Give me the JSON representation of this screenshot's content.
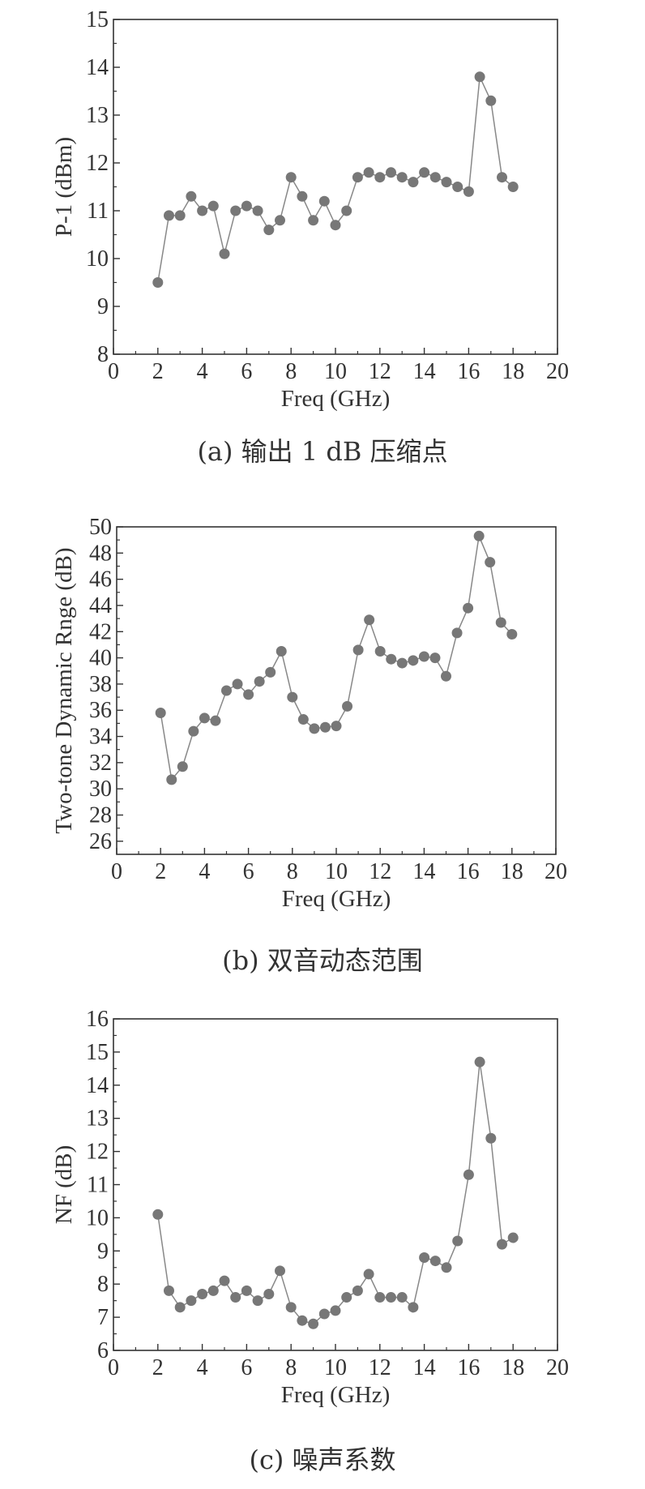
{
  "chart_data": [
    {
      "type": "line",
      "caption": "(a) 输出 1 dB 压缩点",
      "xlabel": "Freq (GHz)",
      "ylabel": "P-1 (dBm)",
      "xlim": [
        0,
        20
      ],
      "ylim": [
        8,
        15
      ],
      "xticks": [
        0,
        2,
        4,
        6,
        8,
        10,
        12,
        14,
        16,
        18,
        20
      ],
      "yticks": [
        8,
        9,
        10,
        11,
        12,
        13,
        14,
        15
      ],
      "markers": true,
      "grid": false,
      "series": [
        {
          "x": [
            2,
            2.5,
            3,
            3.5,
            4,
            4.5,
            5,
            5.5,
            6,
            6.5,
            7,
            7.5,
            8,
            8.5,
            9,
            9.5,
            10,
            10.5,
            11,
            11.5,
            12,
            12.5,
            13,
            13.5,
            14,
            14.5,
            15,
            15.5,
            16,
            16.5,
            17,
            17.5,
            18
          ],
          "y": [
            9.5,
            10.9,
            10.9,
            11.3,
            11.0,
            11.1,
            10.1,
            11.0,
            11.1,
            11.0,
            10.6,
            10.8,
            11.7,
            11.3,
            10.8,
            11.2,
            10.7,
            11.0,
            11.7,
            11.8,
            11.7,
            11.8,
            11.7,
            11.6,
            11.8,
            11.7,
            11.6,
            11.5,
            11.4,
            13.8,
            13.3,
            11.7,
            11.5
          ]
        }
      ]
    },
    {
      "type": "line",
      "caption": "(b) 双音动态范围",
      "xlabel": "Freq (GHz)",
      "ylabel": "Two-tone Dynamic Rnge (dB)",
      "xlim": [
        0,
        20
      ],
      "ylim": [
        25,
        50
      ],
      "xticks": [
        0,
        2,
        4,
        6,
        8,
        10,
        12,
        14,
        16,
        18,
        20
      ],
      "yticks": [
        26,
        28,
        30,
        32,
        34,
        36,
        38,
        40,
        42,
        44,
        46,
        48,
        50
      ],
      "markers": true,
      "grid": false,
      "series": [
        {
          "x": [
            2,
            2.5,
            3,
            3.5,
            4,
            4.5,
            5,
            5.5,
            6,
            6.5,
            7,
            7.5,
            8,
            8.5,
            9,
            9.5,
            10,
            10.5,
            11,
            11.5,
            12,
            12.5,
            13,
            13.5,
            14,
            14.5,
            15,
            15.5,
            16,
            16.5,
            17,
            17.5,
            18
          ],
          "y": [
            35.8,
            30.7,
            31.7,
            34.4,
            35.4,
            35.2,
            37.5,
            38.0,
            37.2,
            38.2,
            38.9,
            40.5,
            37.0,
            35.3,
            34.6,
            34.7,
            34.8,
            36.3,
            40.6,
            42.9,
            40.5,
            39.9,
            39.6,
            39.8,
            40.1,
            40.0,
            38.6,
            41.9,
            43.8,
            49.3,
            47.3,
            42.7,
            41.8
          ]
        }
      ]
    },
    {
      "type": "line",
      "caption": "(c) 噪声系数",
      "xlabel": "Freq (GHz)",
      "ylabel": "NF (dB)",
      "xlim": [
        0,
        20
      ],
      "ylim": [
        6,
        16
      ],
      "xticks": [
        0,
        2,
        4,
        6,
        8,
        10,
        12,
        14,
        16,
        18,
        20
      ],
      "yticks": [
        6,
        7,
        8,
        9,
        10,
        11,
        12,
        13,
        14,
        15,
        16
      ],
      "markers": true,
      "grid": false,
      "series": [
        {
          "x": [
            2,
            2.5,
            3,
            3.5,
            4,
            4.5,
            5,
            5.5,
            6,
            6.5,
            7,
            7.5,
            8,
            8.5,
            9,
            9.5,
            10,
            10.5,
            11,
            11.5,
            12,
            12.5,
            13,
            13.5,
            14,
            14.5,
            15,
            15.5,
            16,
            16.5,
            17,
            17.5,
            18
          ],
          "y": [
            10.1,
            7.8,
            7.3,
            7.5,
            7.7,
            7.8,
            8.1,
            7.6,
            7.8,
            7.5,
            7.7,
            8.4,
            7.3,
            6.9,
            6.8,
            7.1,
            7.2,
            7.6,
            7.8,
            8.3,
            7.6,
            7.6,
            7.6,
            7.3,
            8.8,
            8.7,
            8.5,
            9.3,
            11.3,
            14.7,
            12.4,
            9.2,
            9.4
          ]
        }
      ]
    }
  ],
  "colors": {
    "marker": "#777777",
    "line": "#888888",
    "axis": "#333333"
  }
}
